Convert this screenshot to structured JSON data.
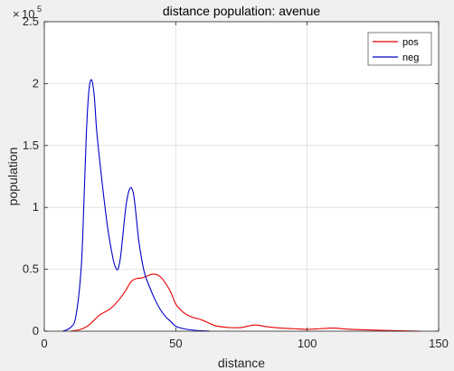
{
  "colors": {
    "figure_bg": "#f0f0f0",
    "axes_bg": "#ffffff",
    "grid": "#dcdcdc",
    "axis": "#262626"
  },
  "chart_data": {
    "type": "line",
    "title": "distance population: avenue",
    "xlabel": "distance",
    "ylabel": "population",
    "xlim": [
      0,
      150
    ],
    "ylim": [
      0,
      250000
    ],
    "xticks": [
      0,
      50,
      100,
      150
    ],
    "yticks": [
      0,
      50000,
      100000,
      150000,
      200000,
      250000
    ],
    "xtick_labels": [
      "0",
      "50",
      "100",
      "150"
    ],
    "ytick_labels": [
      "0",
      "0.5",
      "1",
      "1.5",
      "2",
      "2.5"
    ],
    "y_exponent_base": "10",
    "y_exponent_power": "5",
    "grid": true,
    "legend_position": "top-right",
    "series": [
      {
        "name": "pos",
        "color": "#e60000",
        "x": [
          10,
          13,
          15,
          17,
          19,
          21,
          23,
          25,
          27,
          29,
          31,
          33,
          35,
          37,
          39,
          41,
          43,
          45,
          48,
          50,
          53,
          56,
          60,
          65,
          70,
          75,
          80,
          85,
          90,
          95,
          100,
          105,
          110,
          115,
          120,
          130,
          143
        ],
        "y": [
          0,
          1000,
          2500,
          5000,
          9000,
          13000,
          15500,
          18000,
          22000,
          27000,
          33000,
          40000,
          42500,
          43000,
          44500,
          46000,
          45500,
          42000,
          32000,
          22000,
          15000,
          11500,
          9000,
          4500,
          3000,
          3000,
          5000,
          3500,
          2500,
          2000,
          1500,
          2000,
          2500,
          1700,
          1200,
          600,
          0
        ]
      },
      {
        "name": "neg",
        "color": "#0000cc",
        "x": [
          7,
          10,
          12,
          14,
          15,
          16,
          17,
          18,
          19,
          20,
          22,
          24,
          26,
          27,
          28,
          29,
          30,
          31,
          32,
          33,
          34,
          35,
          36,
          38,
          40,
          42,
          44,
          46,
          48,
          50,
          53,
          56,
          60,
          63
        ],
        "y": [
          0,
          3000,
          12000,
          50000,
          100000,
          160000,
          195000,
          203000,
          190000,
          160000,
          120000,
          85000,
          60000,
          52000,
          50000,
          60000,
          80000,
          100000,
          112000,
          116000,
          110000,
          92000,
          72000,
          48000,
          36000,
          26000,
          18000,
          12000,
          8000,
          4000,
          2000,
          1000,
          300,
          0
        ]
      }
    ]
  }
}
